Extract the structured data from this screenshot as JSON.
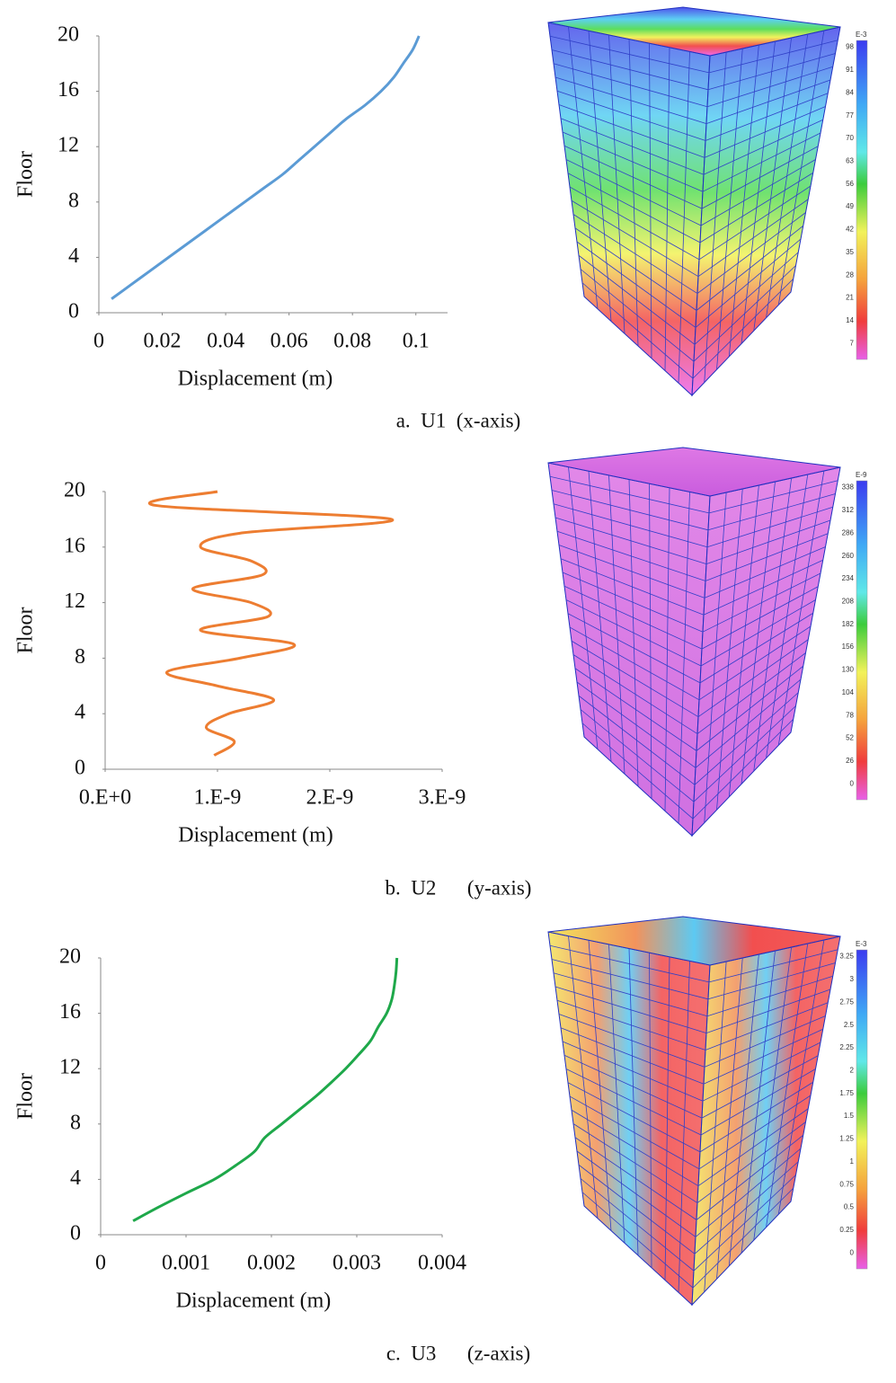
{
  "chart_data": [
    {
      "type": "line",
      "color": "#5b9bd5",
      "x_label": "Displacement (m)",
      "y_label": "Floor",
      "caption": "a.  U1  (x-axis)",
      "x": [
        0.004,
        0.01,
        0.016,
        0.022,
        0.028,
        0.034,
        0.04,
        0.046,
        0.052,
        0.058,
        0.063,
        0.068,
        0.073,
        0.078,
        0.084,
        0.089,
        0.093,
        0.096,
        0.099,
        0.101
      ],
      "values": [
        1,
        2,
        3,
        4,
        5,
        6,
        7,
        8,
        9,
        10,
        11,
        12,
        13,
        14,
        15,
        16,
        17,
        18,
        19,
        20
      ],
      "xlim": [
        0,
        0.11
      ],
      "xticks": [
        0,
        0.02,
        0.04,
        0.06,
        0.08,
        0.1
      ],
      "ylim": [
        0,
        20
      ],
      "yticks": [
        0,
        4,
        8,
        12,
        16,
        20
      ],
      "legend": {
        "label": "E-3",
        "ticks": [
          98,
          91,
          84,
          77,
          70,
          63,
          56,
          49,
          42,
          35,
          28,
          21,
          14,
          7
        ]
      }
    },
    {
      "type": "line",
      "color": "#ed7d31",
      "x_label": "Displacement (m)",
      "y_label": "Floor",
      "caption": "b.  U2      (y-axis)",
      "x": [
        9.7e-10,
        1.15e-09,
        9e-10,
        1.1e-09,
        1.5e-09,
        1e-09,
        5.5e-10,
        1.2e-09,
        1.68e-09,
        8.5e-10,
        1.45e-09,
        1.3e-09,
        7.8e-10,
        1.4e-09,
        1.3e-09,
        8.5e-10,
        1.2e-09,
        2.55e-09,
        4.5e-10,
        1e-09
      ],
      "values": [
        1,
        2,
        3,
        4,
        5,
        6,
        7,
        8,
        9,
        10,
        11,
        12,
        13,
        14,
        15,
        16,
        17,
        18,
        19,
        20
      ],
      "xlim": [
        0,
        3e-09
      ],
      "xticks": [
        {
          "value": 0,
          "label": "0.E+0"
        },
        {
          "value": 1e-09,
          "label": "1.E-9"
        },
        {
          "value": 2e-09,
          "label": "2.E-9"
        },
        {
          "value": 3e-09,
          "label": "3.E-9"
        }
      ],
      "ylim": [
        0,
        20
      ],
      "yticks": [
        0,
        4,
        8,
        12,
        16,
        20
      ],
      "legend": {
        "label": "E-9",
        "ticks": [
          338,
          312,
          286,
          260,
          234,
          208,
          182,
          156,
          130,
          104,
          78,
          52,
          26,
          0
        ]
      }
    },
    {
      "type": "line",
      "color": "#1ea84a",
      "x_label": "Displacement (m)",
      "y_label": "Floor",
      "caption": "c.  U3      (z-axis)",
      "x": [
        0.00038,
        0.00068,
        0.001,
        0.00133,
        0.00158,
        0.0018,
        0.00192,
        0.00212,
        0.00232,
        0.00252,
        0.0027,
        0.00287,
        0.00302,
        0.00316,
        0.00325,
        0.00335,
        0.00341,
        0.00344,
        0.00346,
        0.00347
      ],
      "values": [
        1,
        2,
        3,
        4,
        5,
        6,
        7,
        8,
        9,
        10,
        11,
        12,
        13,
        14,
        15,
        16,
        17,
        18,
        19,
        20
      ],
      "xlim": [
        0,
        0.004
      ],
      "xticks": [
        0,
        0.001,
        0.002,
        0.003,
        0.004
      ],
      "ylim": [
        0,
        20
      ],
      "yticks": [
        0,
        4,
        8,
        12,
        16,
        20
      ],
      "legend": {
        "label": "E-3",
        "ticks": [
          3.25,
          3,
          2.75,
          2.5,
          2.25,
          2,
          1.75,
          1.5,
          1.25,
          1,
          0.75,
          0.5,
          0.25,
          0
        ]
      }
    }
  ]
}
